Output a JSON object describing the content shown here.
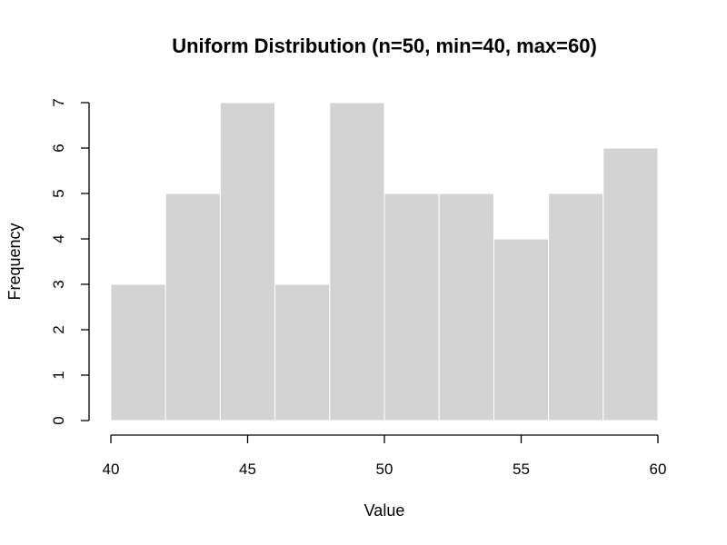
{
  "chart_data": {
    "type": "bar",
    "title": "Uniform Distribution (n=50, min=40, max=60)",
    "xlabel": "Value",
    "ylabel": "Frequency",
    "bin_edges": [
      40,
      42,
      44,
      46,
      48,
      50,
      52,
      54,
      56,
      58,
      60
    ],
    "values": [
      3,
      5,
      7,
      3,
      7,
      5,
      5,
      4,
      5,
      6
    ],
    "xlim": [
      40,
      60
    ],
    "ylim": [
      0,
      7
    ],
    "x_ticks": [
      40,
      45,
      50,
      55,
      60
    ],
    "y_ticks": [
      0,
      1,
      2,
      3,
      4,
      5,
      6,
      7
    ],
    "bar_color": "#d3d3d3",
    "bar_border_color": "#ffffff",
    "grid": false,
    "legend": "none"
  }
}
